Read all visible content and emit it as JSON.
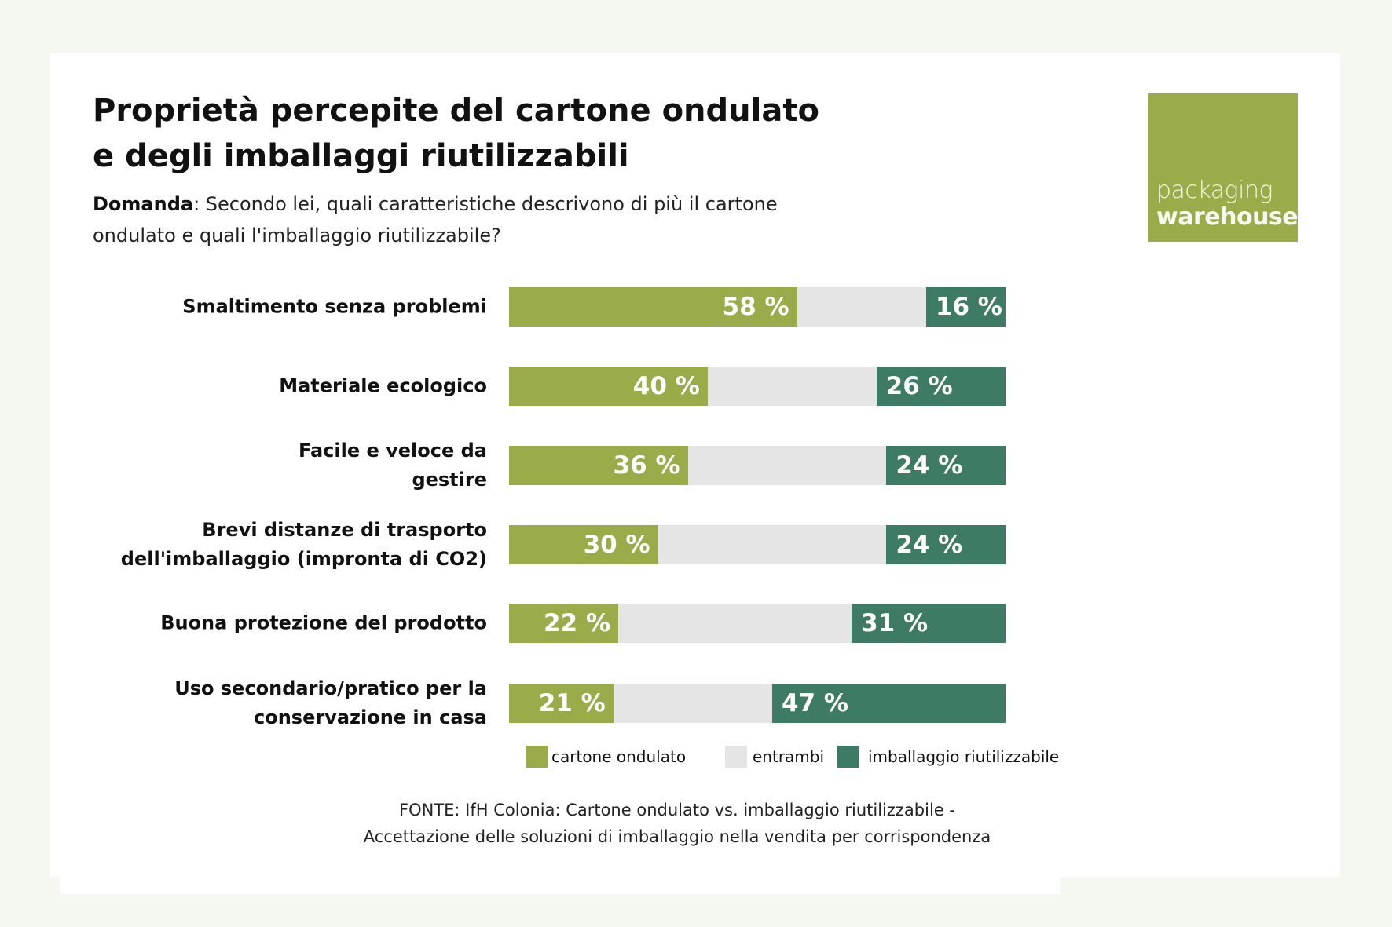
{
  "title": "Proprietà percepite del cartone ondulato e degli imballaggi riutilizzabili",
  "question_label": "Domanda",
  "question_text": ": Secondo lei, quali caratteristiche descrivono di più il cartone ondulato e quali l'imballaggio riutilizzabile?",
  "logo": {
    "line1": "packaging",
    "line2": "warehouse"
  },
  "colors": {
    "cartone": "#9aab4a",
    "entrambi": "#e5e5e5",
    "riutilizzabile": "#3e7b64",
    "background": "#f4f8f1"
  },
  "chart_data": {
    "type": "bar",
    "stacked": true,
    "orientation": "horizontal",
    "categories": [
      "Smaltimento senza problemi",
      "Materiale ecologico",
      "Facile e veloce da gestire",
      "Brevi distanze di trasporto dell'imballaggio (impronta di CO2)",
      "Buona protezione del prodotto",
      "Uso secondario/pratico per la conservazione in casa"
    ],
    "series": [
      {
        "name": "cartone ondulato",
        "values": [
          58,
          40,
          36,
          30,
          22,
          21
        ],
        "labels": [
          "58 %",
          "40 %",
          "36 %",
          "30 %",
          "22 %",
          "21 %"
        ]
      },
      {
        "name": "entrambi",
        "values": [
          26,
          34,
          40,
          46,
          47,
          32
        ]
      },
      {
        "name": "imballaggio riutilizzabile",
        "values": [
          16,
          26,
          24,
          24,
          31,
          47
        ],
        "labels": [
          "16 %",
          "26 %",
          "24 %",
          "24 %",
          "31 %",
          "47 %"
        ]
      }
    ],
    "xlim": [
      0,
      100
    ],
    "legend_position": "bottom"
  },
  "source": {
    "line1": "FONTE: IfH Colonia: Cartone ondulato vs. imballaggio riutilizzabile -",
    "line2": "Accettazione delle soluzioni di imballaggio nella vendita per corrispondenza"
  }
}
